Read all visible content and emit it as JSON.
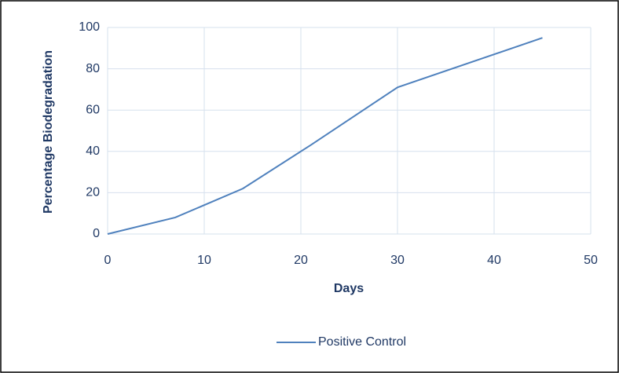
{
  "chart_data": {
    "type": "line",
    "x_label": "Days",
    "y_label": "Percentage Biodegradation",
    "x": [
      0,
      7,
      14,
      21,
      30,
      45
    ],
    "series": [
      {
        "name": "Positive Control",
        "color": "#4f81bd",
        "values": [
          0,
          8,
          22,
          43,
          71,
          95
        ]
      }
    ],
    "xlim": [
      0,
      50
    ],
    "xticks": [
      0,
      10,
      20,
      30,
      40,
      50
    ],
    "ylim": [
      0,
      100
    ],
    "yticks": [
      0,
      20,
      40,
      60,
      80,
      100
    ],
    "grid": true,
    "legend": "bottom"
  }
}
